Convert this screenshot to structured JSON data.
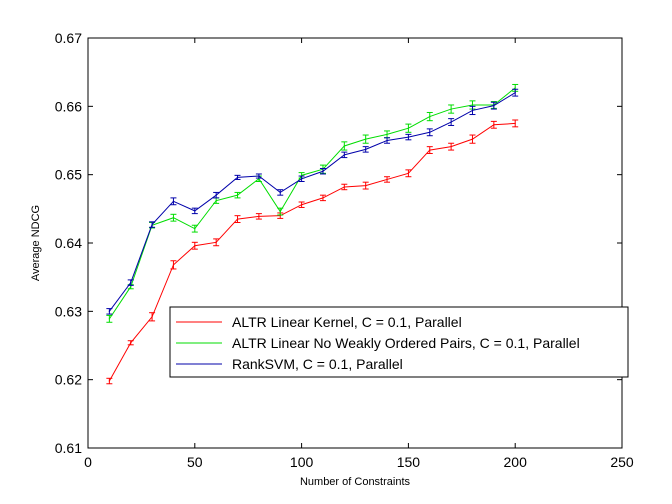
{
  "chart_data": {
    "type": "line",
    "title": "",
    "xlabel": "Number of Constraints",
    "ylabel": "Average NDCG",
    "xlim": [
      0,
      250
    ],
    "ylim": [
      0.61,
      0.67
    ],
    "xticks": [
      0,
      50,
      100,
      150,
      200,
      250
    ],
    "xtick_labels": [
      "0",
      "50",
      "100",
      "150",
      "200",
      "250"
    ],
    "yticks": [
      0.61,
      0.62,
      0.63,
      0.64,
      0.65,
      0.66,
      0.67
    ],
    "ytick_labels": [
      "0.61",
      "0.62",
      "0.63",
      "0.64",
      "0.65",
      "0.66",
      "0.67"
    ],
    "grid": false,
    "legend_position": "lower-right",
    "x": [
      10,
      20,
      30,
      40,
      50,
      60,
      70,
      80,
      90,
      100,
      110,
      120,
      130,
      140,
      150,
      160,
      170,
      180,
      190,
      200
    ],
    "series": [
      {
        "name": "ALTR Linear Kernel, C = 0.1, Parallel",
        "color": "#ff0000",
        "values": [
          0.6198,
          0.6254,
          0.6292,
          0.6368,
          0.6396,
          0.6401,
          0.6435,
          0.6439,
          0.644,
          0.6456,
          0.6466,
          0.6482,
          0.6484,
          0.6493,
          0.6502,
          0.6536,
          0.6541,
          0.6552,
          0.6573,
          0.6575
        ],
        "errors": [
          0.0004,
          0.0003,
          0.0006,
          0.0006,
          0.0005,
          0.0005,
          0.0005,
          0.0004,
          0.0004,
          0.0004,
          0.0004,
          0.0004,
          0.0005,
          0.0004,
          0.0005,
          0.0005,
          0.0005,
          0.0006,
          0.0005,
          0.0005
        ]
      },
      {
        "name": "ALTR Linear No Weakly Ordered Pairs, C = 0.1, Parallel",
        "color": "#00dd00",
        "values": [
          0.6289,
          0.6336,
          0.6426,
          0.6437,
          0.6421,
          0.6462,
          0.647,
          0.6494,
          0.6446,
          0.6499,
          0.6508,
          0.6542,
          0.6552,
          0.6559,
          0.6568,
          0.6585,
          0.6596,
          0.6602,
          0.6602,
          0.6627
        ],
        "errors": [
          0.0005,
          0.0003,
          0.0004,
          0.0005,
          0.0005,
          0.0004,
          0.0004,
          0.0004,
          0.0005,
          0.0004,
          0.0006,
          0.0006,
          0.0006,
          0.0005,
          0.0006,
          0.0006,
          0.0006,
          0.0006,
          0.0005,
          0.0005
        ]
      },
      {
        "name": "RankSVM, C = 0.1, Parallel",
        "color": "#0000aa",
        "values": [
          0.63,
          0.6342,
          0.6427,
          0.6461,
          0.6447,
          0.647,
          0.6496,
          0.6498,
          0.6474,
          0.6494,
          0.6505,
          0.6529,
          0.6537,
          0.655,
          0.6555,
          0.6562,
          0.6577,
          0.6594,
          0.6601,
          0.662
        ],
        "errors": [
          0.0004,
          0.0004,
          0.0004,
          0.0005,
          0.0004,
          0.0004,
          0.0003,
          0.0003,
          0.0004,
          0.0004,
          0.0004,
          0.0004,
          0.0004,
          0.0004,
          0.0004,
          0.0005,
          0.0005,
          0.0006,
          0.0005,
          0.0005
        ]
      }
    ]
  }
}
